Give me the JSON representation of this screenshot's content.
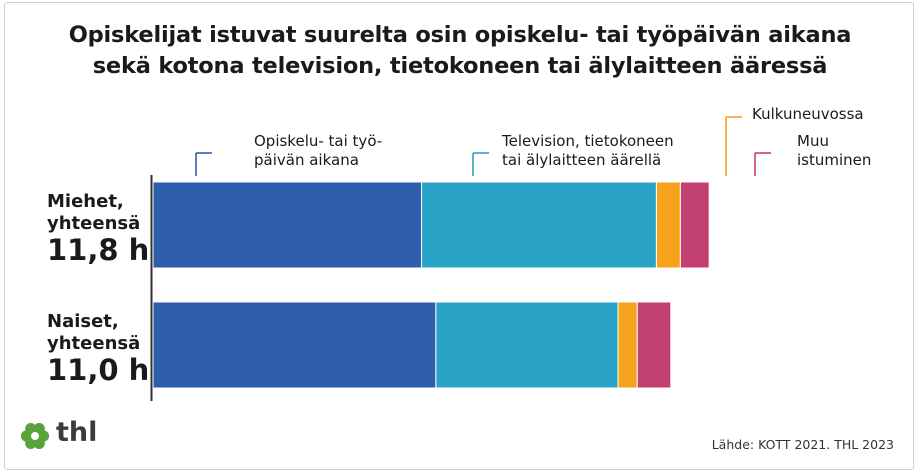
{
  "title_lines": [
    "Opiskelijat istuvat suurelta osin opiskelu- tai työpäivän aikana",
    "sekä kotona television, tietokoneen tai älylaitteen ääressä"
  ],
  "source": "Lähde: KOTT 2021. THL 2023",
  "logo_text": "thl",
  "colors": {
    "study": "#2e5eab",
    "screen": "#29a3c6",
    "vehicle": "#f7a21b",
    "other": "#c23f72",
    "axis": "#333333",
    "logo_green": "#5aa33a"
  },
  "chart_data": {
    "type": "bar",
    "orientation": "horizontal",
    "stacked": true,
    "unit": "h",
    "categories": [
      {
        "label_lines": [
          "Miehet,",
          "yhteensä"
        ],
        "total_label": "11,8 h"
      },
      {
        "label_lines": [
          "Naiset,",
          "yhteensä"
        ],
        "total_label": "11,0 h"
      }
    ],
    "series": [
      {
        "key": "study",
        "name_lines": [
          "Opiskelu- tai työ-",
          "päivän aikana"
        ],
        "values": [
          5.6,
          5.9
        ]
      },
      {
        "key": "screen",
        "name_lines": [
          "Television, tietokoneen",
          "tai älylaitteen äärellä"
        ],
        "values": [
          4.9,
          3.8
        ]
      },
      {
        "key": "vehicle",
        "name_lines": [
          "Kulkuneuvossa"
        ],
        "values": [
          0.5,
          0.4
        ]
      },
      {
        "key": "other",
        "name_lines": [
          "Muu",
          "istuminen"
        ],
        "values": [
          0.6,
          0.7
        ]
      }
    ],
    "xlim": [
      0,
      14.6
    ],
    "legend_placement": "top, above bars",
    "grid": false
  }
}
